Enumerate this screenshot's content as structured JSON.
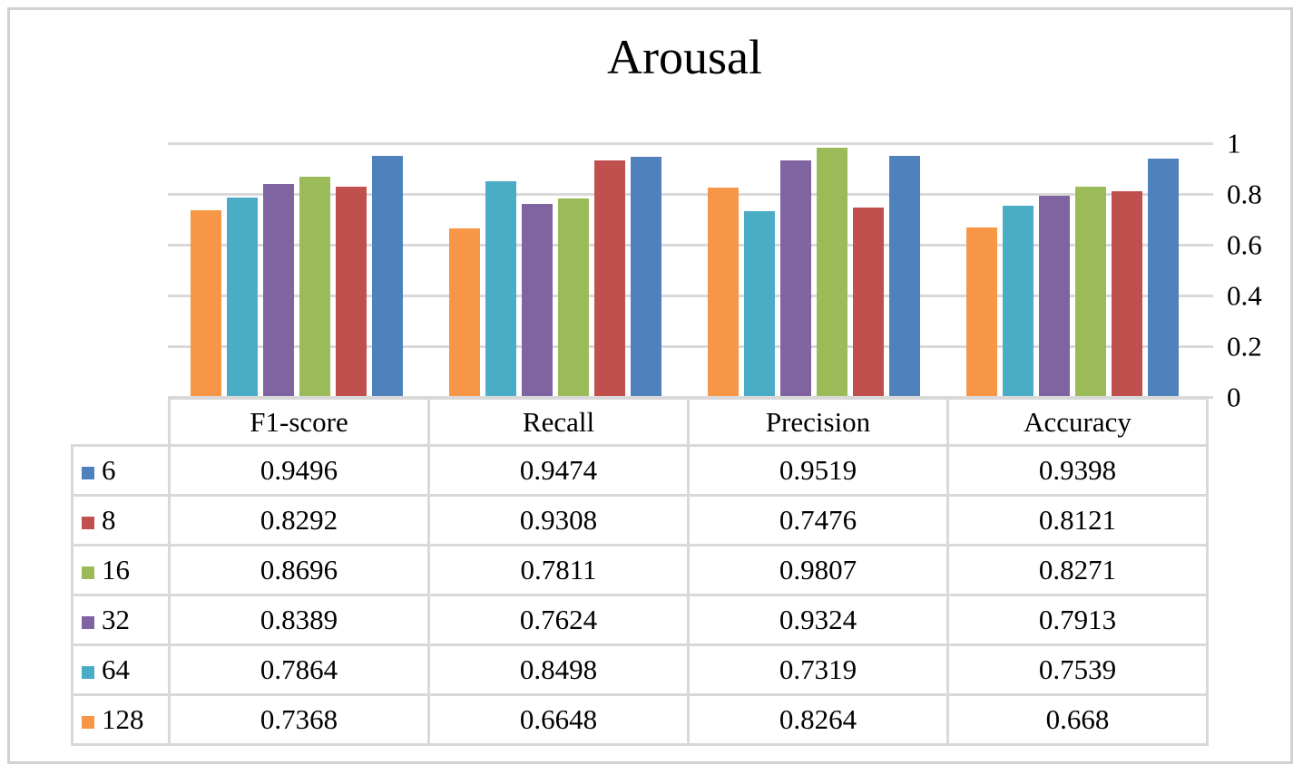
{
  "frame": {
    "background": "#ffffff",
    "border_color": "#d2d2d2"
  },
  "chart_data": {
    "type": "bar",
    "title": "Arousal",
    "categories": [
      "F1-score",
      "Recall",
      "Precision",
      "Accuracy"
    ],
    "series": [
      {
        "name": "6",
        "color": "#4F81BD",
        "values": [
          0.9496,
          0.9474,
          0.9519,
          0.9398
        ]
      },
      {
        "name": "8",
        "color": "#C0504D",
        "values": [
          0.8292,
          0.9308,
          0.7476,
          0.8121
        ]
      },
      {
        "name": "16",
        "color": "#9BBB59",
        "values": [
          0.8696,
          0.7811,
          0.9807,
          0.8271
        ]
      },
      {
        "name": "32",
        "color": "#8064A2",
        "values": [
          0.8389,
          0.7624,
          0.9324,
          0.7913
        ]
      },
      {
        "name": "64",
        "color": "#4BACC6",
        "values": [
          0.7864,
          0.8498,
          0.7319,
          0.7539
        ]
      },
      {
        "name": "128",
        "color": "#F79646",
        "values": [
          0.7368,
          0.6648,
          0.8264,
          0.668
        ]
      }
    ],
    "plot_order": [
      "128",
      "64",
      "32",
      "16",
      "8",
      "6"
    ],
    "ylim": [
      0,
      1
    ],
    "y_ticks": [
      {
        "label": "1",
        "v": 1.0
      },
      {
        "label": "0.8",
        "v": 0.8
      },
      {
        "label": "0.6",
        "v": 0.6
      },
      {
        "label": "0.4",
        "v": 0.4
      },
      {
        "label": "0.2",
        "v": 0.2
      },
      {
        "label": "0",
        "v": 0.0
      }
    ],
    "axis_side": "right",
    "grid": true,
    "gridline_color": "#d9d9d9",
    "legend_position": "table-rows"
  },
  "table": {
    "columns": [
      "F1-score",
      "Recall",
      "Precision",
      "Accuracy"
    ],
    "rows": [
      {
        "label": "6",
        "swatch_color": "#4F81BD",
        "cells": [
          "0.9496",
          "0.9474",
          "0.9519",
          "0.9398"
        ]
      },
      {
        "label": "8",
        "swatch_color": "#C0504D",
        "cells": [
          "0.8292",
          "0.9308",
          "0.7476",
          "0.8121"
        ]
      },
      {
        "label": "16",
        "swatch_color": "#9BBB59",
        "cells": [
          "0.8696",
          "0.7811",
          "0.9807",
          "0.8271"
        ]
      },
      {
        "label": "32",
        "swatch_color": "#8064A2",
        "cells": [
          "0.8389",
          "0.7624",
          "0.9324",
          "0.7913"
        ]
      },
      {
        "label": "64",
        "swatch_color": "#4BACC6",
        "cells": [
          "0.7864",
          "0.8498",
          "0.7319",
          "0.7539"
        ]
      },
      {
        "label": "128",
        "swatch_color": "#F79646",
        "cells": [
          "0.7368",
          "0.6648",
          "0.8264",
          "0.668"
        ]
      }
    ]
  }
}
